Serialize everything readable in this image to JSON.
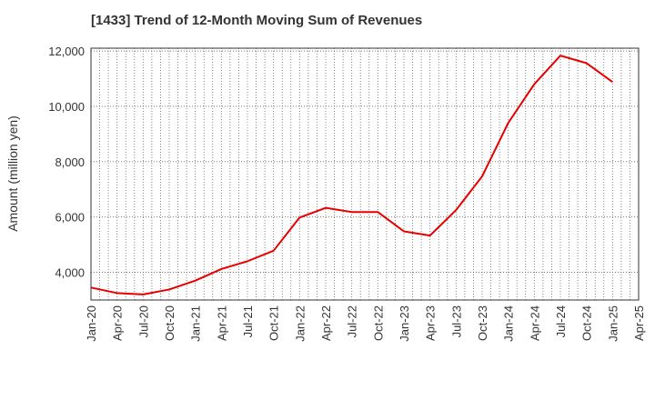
{
  "chart_data": {
    "type": "line",
    "title": "[1433]  Trend of 12-Month Moving Sum of Revenues",
    "ylabel": "Amount (million yen)",
    "xlabel": "",
    "x_tick_labels": [
      "Jan-20",
      "Apr-20",
      "Jul-20",
      "Oct-20",
      "Jan-21",
      "Apr-21",
      "Jul-21",
      "Oct-21",
      "Jan-22",
      "Apr-22",
      "Jul-22",
      "Oct-22",
      "Jan-23",
      "Apr-23",
      "Jul-23",
      "Oct-23",
      "Jan-24",
      "Apr-24",
      "Jul-24",
      "Oct-24",
      "Jan-25",
      "Apr-25"
    ],
    "y_tick_labels": [
      "4,000",
      "6,000",
      "8,000",
      "10,000",
      "12,000"
    ],
    "y_ticks": [
      4000,
      6000,
      8000,
      10000,
      12000
    ],
    "ylim": [
      3000,
      12100
    ],
    "grid": true,
    "grid_style": "dotted",
    "series": [
      {
        "name": "",
        "color": "#e60000",
        "x": [
          "Jan-20",
          "Apr-20",
          "Jul-20",
          "Oct-20",
          "Jan-21",
          "Apr-21",
          "Jul-21",
          "Oct-21",
          "Jan-22",
          "Apr-22",
          "Jul-22",
          "Oct-22",
          "Jan-23",
          "Apr-23",
          "Jul-23",
          "Oct-23",
          "Jan-24",
          "Apr-24",
          "Jul-24",
          "Oct-24",
          "Jan-25"
        ],
        "values": [
          3450,
          3250,
          3200,
          3380,
          3700,
          4120,
          4400,
          4780,
          5980,
          6330,
          6180,
          6180,
          5480,
          5330,
          6250,
          7470,
          9400,
          10800,
          11830,
          11560,
          10880
        ]
      }
    ]
  }
}
